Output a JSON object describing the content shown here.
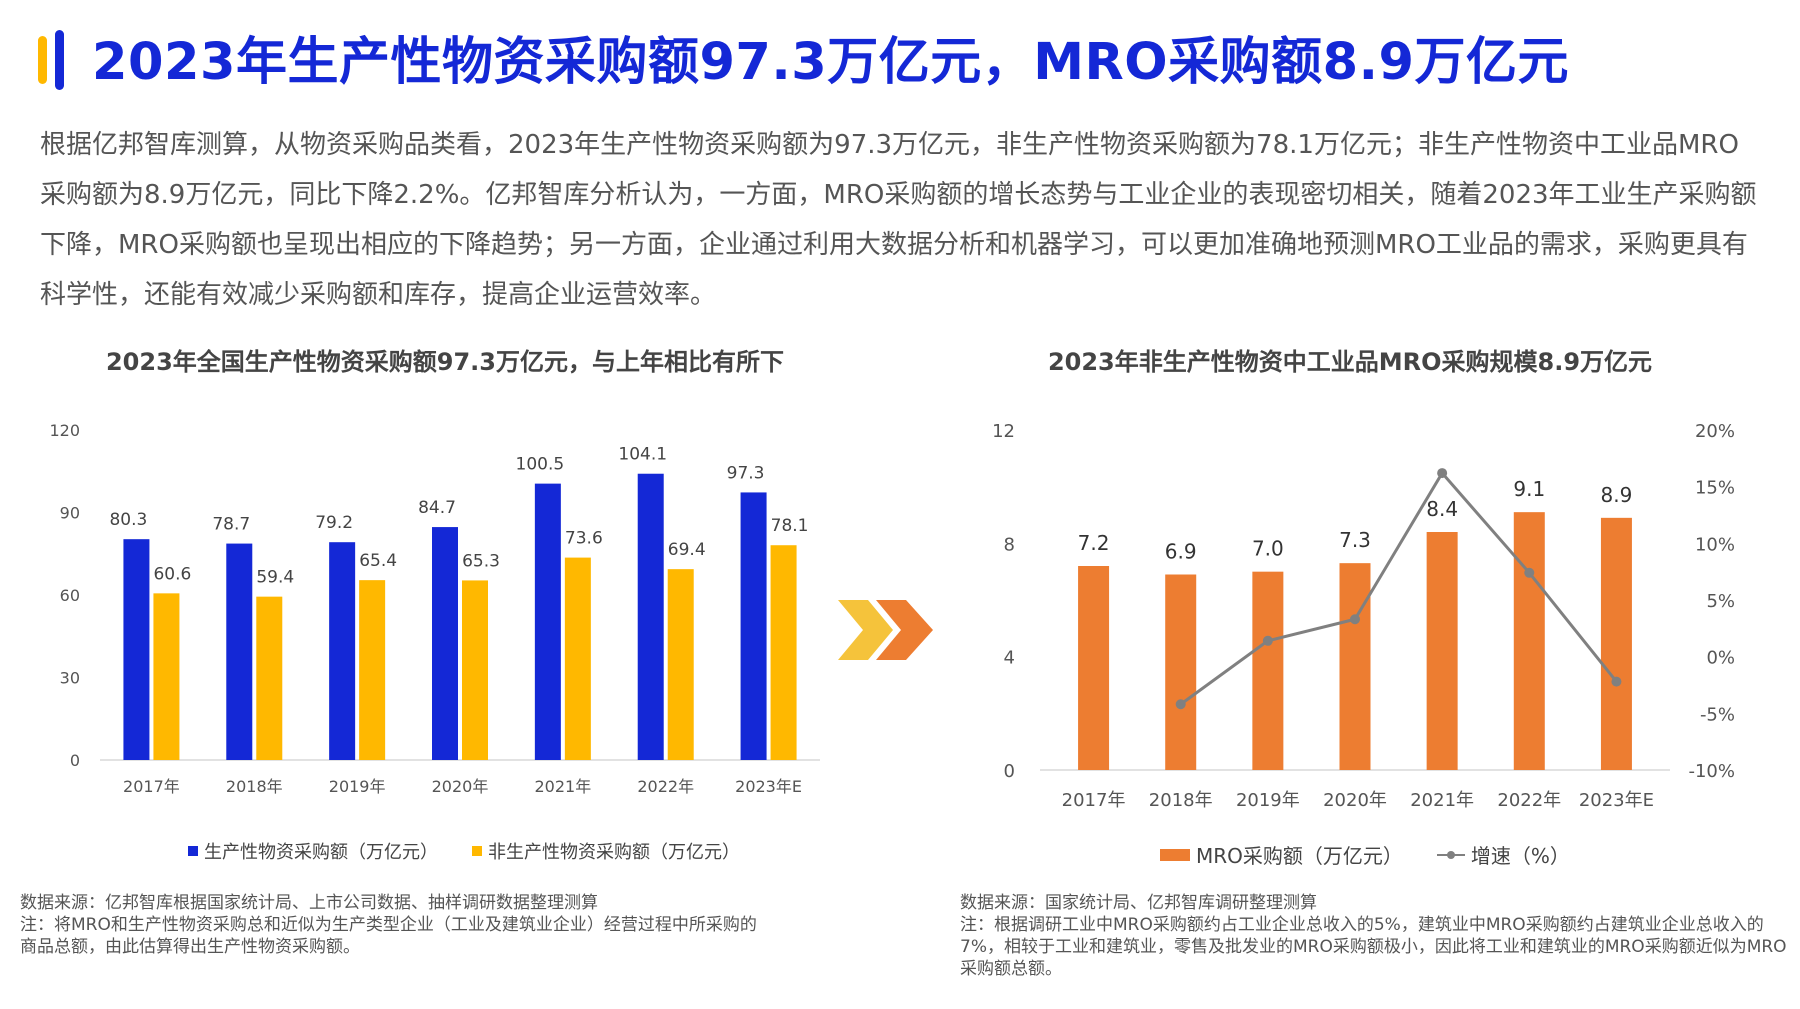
{
  "title": "2023年生产性物资采购额97.3万亿元，MRO采购额8.9万亿元",
  "intro": "根据亿邦智库测算，从物资采购品类看，2023年生产性物资采购额为97.3万亿元，非生产性物资采购额为78.1万亿元；非生产性物资中工业品MRO采购额为8.9万亿元，同比下降2.2%。亿邦智库分析认为，一方面，MRO采购额的增长态势与工业企业的表现密切相关，随着2023年工业生产采购额下降，MRO采购额也呈现出相应的下降趋势；另一方面，企业通过利用大数据分析和机器学习，可以更加准确地预测MRO工业品的需求，采购更具有科学性，还能有效减少采购额和库存，提高企业运营效率。",
  "colors": {
    "title_blue": "#1428D6",
    "bar_blue": "#1428D6",
    "bar_yellow": "#FFB800",
    "bar_orange": "#ED7D31",
    "line_gray": "#808080",
    "arrow_yellow": "#F5C33B",
    "arrow_orange": "#ED7D31"
  },
  "left": {
    "title": "2023年全国生产性物资采购额97.3万亿元，与上年相比有所下",
    "legend": [
      "生产性物资采购额（万亿元）",
      "非生产性物资采购额（万亿元）"
    ],
    "source": "数据来源：亿邦智库根据国家统计局、上市公司数据、抽样调研数据整理测算",
    "note": "注：将MRO和生产性物资采购总和近似为生产类型企业（工业及建筑业企业）经营过程中所采购的商品总额，由此估算得出生产性物资采购额。"
  },
  "right": {
    "title": "2023年非生产性物资中工业品MRO采购规模8.9万亿元",
    "legend": [
      "MRO采购额（万亿元）",
      "增速（%）"
    ],
    "source": "数据来源：国家统计局、亿邦智库调研整理测算",
    "note": "注：根据调研工业中MRO采购额约占工业企业总收入的5%，建筑业中MRO采购额约占建筑业企业总收入的7%，相较于工业和建筑业，零售及批发业的MRO采购额极小，因此将工业和建筑业的MRO采购额近似为MRO采购额总额。"
  },
  "chart_data": [
    {
      "type": "bar",
      "title": "2023年全国生产性物资采购额97.3万亿元，与上年相比有所下",
      "categories": [
        "2017年",
        "2018年",
        "2019年",
        "2020年",
        "2021年",
        "2022年",
        "2023年E"
      ],
      "series": [
        {
          "name": "生产性物资采购额（万亿元）",
          "values": [
            80.3,
            78.7,
            79.2,
            84.7,
            100.5,
            104.1,
            97.3
          ],
          "color": "#1428D6"
        },
        {
          "name": "非生产性物资采购额（万亿元）",
          "values": [
            60.6,
            59.4,
            65.4,
            65.3,
            73.6,
            69.4,
            78.1
          ],
          "color": "#FFB800"
        }
      ],
      "ylim": [
        0,
        120
      ],
      "yticks": [
        0,
        30,
        60,
        90,
        120
      ],
      "grid": false,
      "legend": "bottom"
    },
    {
      "type": "bar",
      "title": "2023年非生产性物资中工业品MRO采购规模8.9万亿元",
      "categories": [
        "2017年",
        "2018年",
        "2019年",
        "2020年",
        "2021年",
        "2022年",
        "2023年E"
      ],
      "series": [
        {
          "name": "MRO采购额（万亿元）",
          "type": "bar",
          "axis": "left",
          "values": [
            7.2,
            6.9,
            7.0,
            7.3,
            8.4,
            9.1,
            8.9
          ],
          "color": "#ED7D31"
        },
        {
          "name": "增速（%）",
          "type": "line",
          "axis": "right",
          "values": [
            null,
            -4.2,
            1.4,
            3.3,
            16.2,
            7.4,
            -2.2
          ],
          "color": "#808080"
        }
      ],
      "ylim": [
        0,
        12
      ],
      "yticks": [
        0,
        4,
        8,
        12
      ],
      "y2lim": [
        -10,
        20
      ],
      "y2ticks": [
        "-10%",
        "-5%",
        "0%",
        "5%",
        "10%",
        "15%",
        "20%"
      ],
      "grid": false,
      "legend": "bottom"
    }
  ]
}
